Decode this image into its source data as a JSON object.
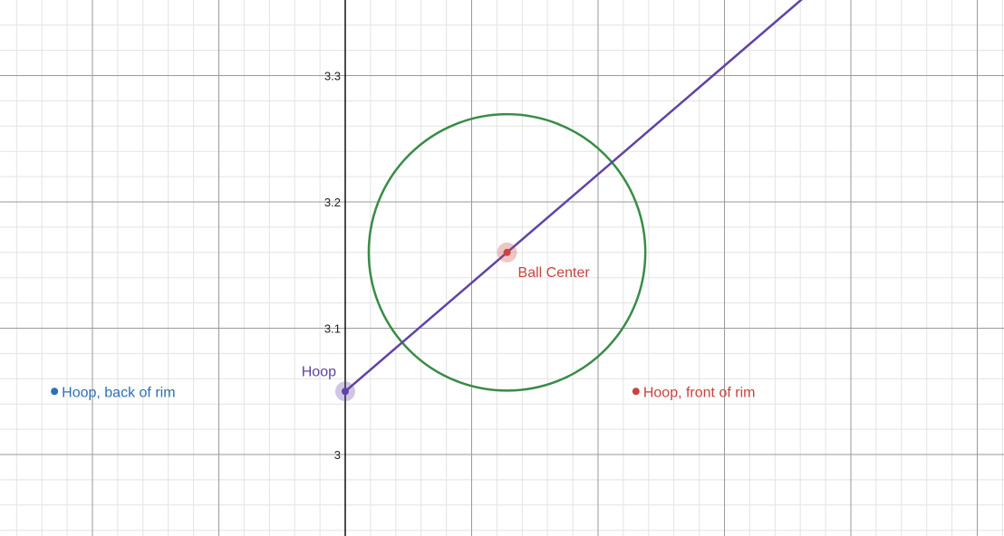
{
  "chart_data": {
    "type": "scatter",
    "title": "",
    "xlabel": "",
    "ylabel": "",
    "y_ticks": [
      "3",
      "3.1",
      "3.2",
      "3.3"
    ],
    "grid": true,
    "axis_lines": true,
    "points": [
      {
        "label": "Hoop, back of rim",
        "x": -0.23,
        "y": 3.05,
        "color": "#2d70b3"
      },
      {
        "label": "Hoop",
        "x": 0.0,
        "y": 3.05,
        "color": "#6042a6"
      },
      {
        "label": "Ball Center",
        "x": 0.128,
        "y": 3.16,
        "color": "#c74440"
      },
      {
        "label": "Hoop, front of rim",
        "x": 0.23,
        "y": 3.05,
        "color": "#c74440"
      }
    ],
    "circle": {
      "center_x": 0.128,
      "center_y": 3.16,
      "radius": 0.1094,
      "color": "#388c46"
    },
    "line": {
      "x1": 0.0,
      "y1": 3.05,
      "x2": 0.128,
      "y2": 3.16,
      "color": "#6042a6"
    }
  }
}
